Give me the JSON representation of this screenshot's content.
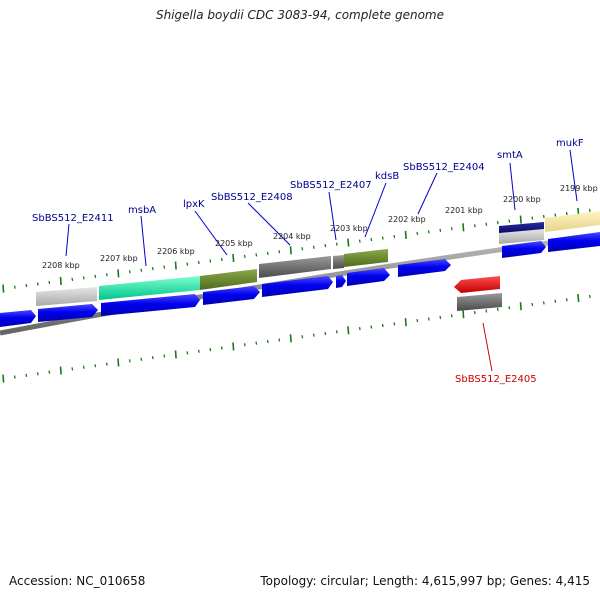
{
  "title": "Shigella boydii CDC 3083-94, complete genome",
  "footer": {
    "accession": "Accession: NC_010658",
    "summary": "Topology: circular; Length: 4,615,997 bp; Genes: 4,415"
  },
  "colors": {
    "strand": "#0000ee",
    "label_top": "#00008b",
    "label_bottom": "#cc0000",
    "tick": "#1a7a1a",
    "backbone": "#777777"
  },
  "kbp_ticks": [
    "2208 kbp",
    "2207 kbp",
    "2206 kbp",
    "2205 kbp",
    "2204 kbp",
    "2203 kbp",
    "2202 kbp",
    "2201 kbp",
    "2200 kbp",
    "2199 kbp"
  ],
  "gene_labels_top": [
    "SbBS512_E2411",
    "msbA",
    "lpxK",
    "SbBS512_E2408",
    "SbBS512_E2407",
    "kdsB",
    "SbBS512_E2404",
    "smtA",
    "mukF"
  ],
  "gene_labels_bottom": [
    "SbBS512_E2405"
  ]
}
